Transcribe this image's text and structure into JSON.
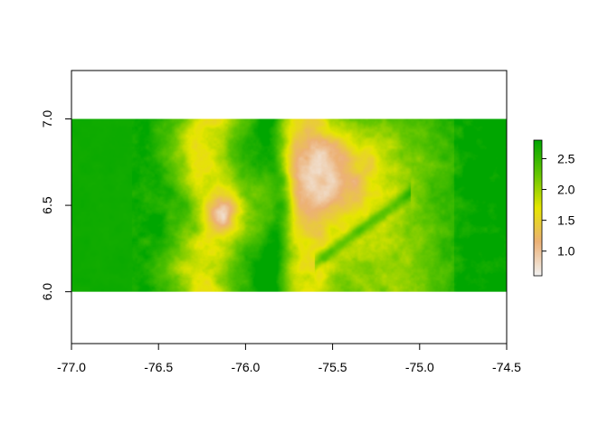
{
  "chart_data": {
    "type": "heatmap",
    "title": "",
    "xlabel": "",
    "ylabel": "",
    "xlim": [
      -77.0,
      -74.5
    ],
    "ylim": [
      5.7,
      7.28
    ],
    "raster_extent": {
      "xmin": -77.0,
      "xmax": -74.5,
      "ymin": 6.0,
      "ymax": 7.0
    },
    "x_ticks": [
      {
        "value": -77.0,
        "label": "-77.0"
      },
      {
        "value": -76.5,
        "label": "-76.5"
      },
      {
        "value": -76.0,
        "label": "-76.0"
      },
      {
        "value": -75.5,
        "label": "-75.5"
      },
      {
        "value": -75.0,
        "label": "-75.0"
      },
      {
        "value": -74.5,
        "label": "-74.5"
      }
    ],
    "y_ticks": [
      {
        "value": 6.0,
        "label": "6.0"
      },
      {
        "value": 6.5,
        "label": "6.5"
      },
      {
        "value": 7.0,
        "label": "7.0"
      }
    ],
    "legend": {
      "placement": "right",
      "min": 0.6,
      "max": 2.8,
      "ticks": [
        {
          "value": 1.0,
          "label": "1.0"
        },
        {
          "value": 1.5,
          "label": "1.5"
        },
        {
          "value": 2.0,
          "label": "2.0"
        },
        {
          "value": 2.5,
          "label": "2.5"
        }
      ],
      "colors": [
        "#f2f2f2",
        "#ecb176",
        "#e6e600",
        "#63c600",
        "#00a600"
      ]
    },
    "grid": false,
    "value_field": {
      "west_lowland": {
        "x_range": [
          -77.0,
          -76.65
        ],
        "value": 2.75
      },
      "ridges": [
        {
          "name": "",
          "center_x": -76.13,
          "center_y": 6.45,
          "peak": 0.7
        },
        {
          "name": "",
          "center_x": -75.5,
          "center_y": 6.75,
          "peak": 1.2
        }
      ],
      "valleys": [
        {
          "center_x": -75.83,
          "value": 2.6
        },
        {
          "center_x": -75.55,
          "value": 2.2
        }
      ],
      "east_lowland": {
        "x_range": [
          -74.9,
          -74.5
        ],
        "value": 2.65
      }
    }
  }
}
